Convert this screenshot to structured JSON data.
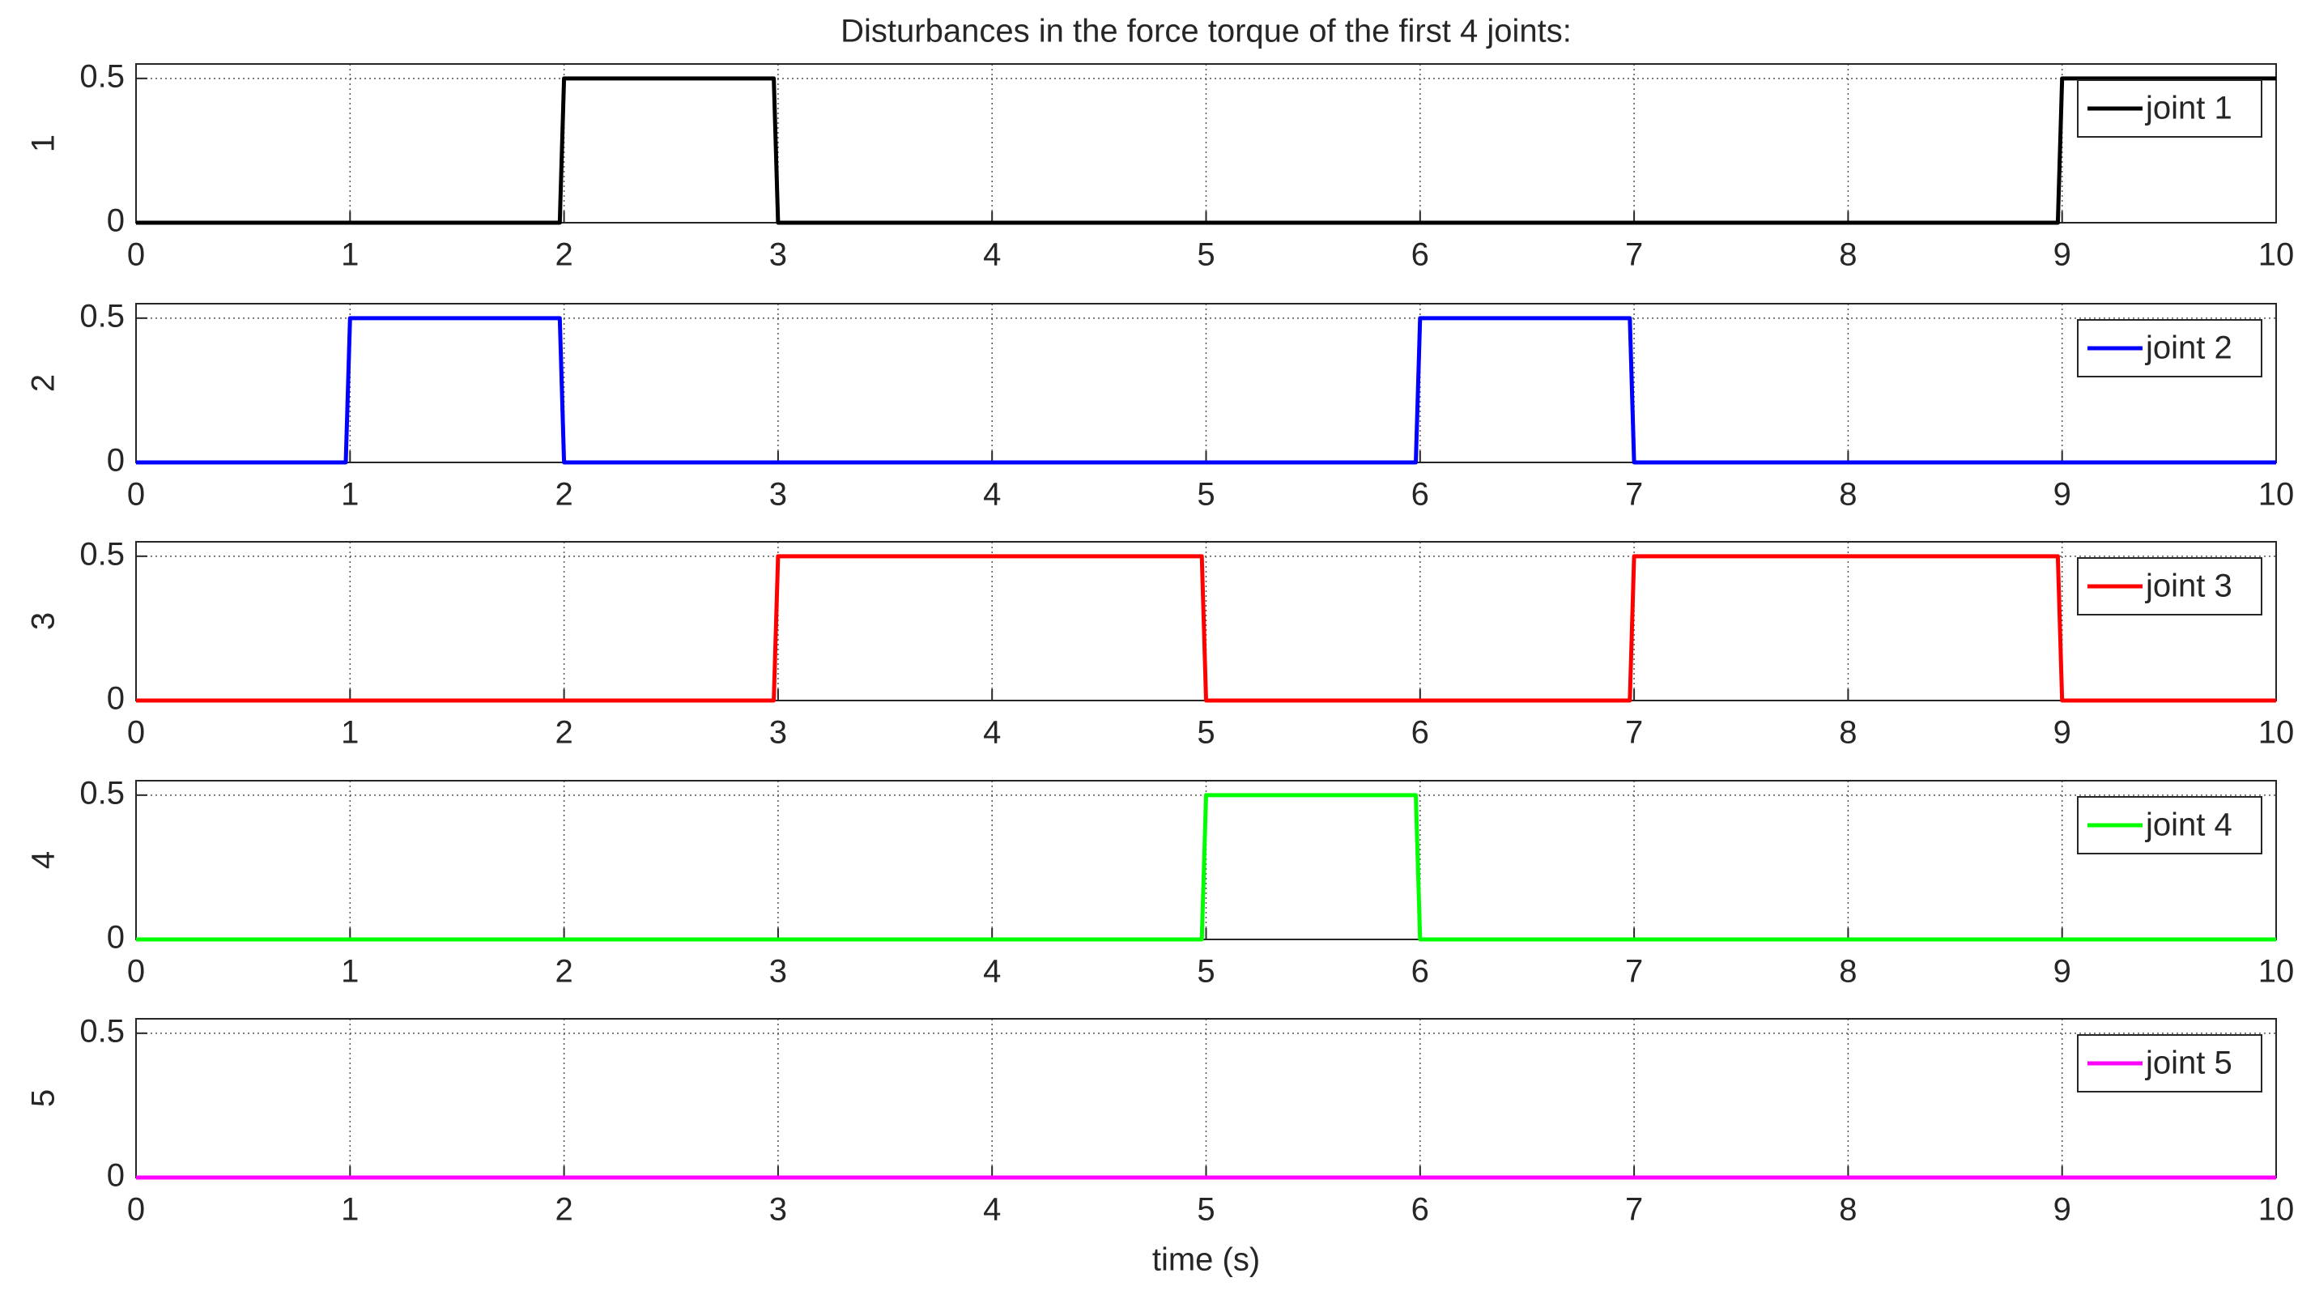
{
  "chart_data": [
    {
      "type": "line",
      "title": "Disturbances in the force torque of the first 4 joints:",
      "ylabel": "1",
      "xlim": [
        0,
        10
      ],
      "ylim": [
        0,
        0.55
      ],
      "xticks": [
        0,
        1,
        2,
        3,
        4,
        5,
        6,
        7,
        8,
        9,
        10
      ],
      "yticks": [
        0,
        0.5
      ],
      "grid": true,
      "legend": "northeast",
      "series": [
        {
          "name": "joint 1",
          "color": "#000000",
          "x": [
            0,
            1.98,
            2,
            2.98,
            3,
            8.98,
            9,
            10
          ],
          "values": [
            0,
            0,
            0.5,
            0.5,
            0,
            0,
            0.5,
            0.5
          ]
        }
      ]
    },
    {
      "type": "line",
      "ylabel": "2",
      "xlim": [
        0,
        10
      ],
      "ylim": [
        0,
        0.55
      ],
      "xticks": [
        0,
        1,
        2,
        3,
        4,
        5,
        6,
        7,
        8,
        9,
        10
      ],
      "yticks": [
        0,
        0.5
      ],
      "grid": true,
      "legend": "northeast",
      "series": [
        {
          "name": "joint 2",
          "color": "#0000ff",
          "x": [
            0,
            0.98,
            1,
            1.98,
            2,
            5.98,
            6,
            6.98,
            7,
            10
          ],
          "values": [
            0,
            0,
            0.5,
            0.5,
            0,
            0,
            0.5,
            0.5,
            0,
            0
          ]
        }
      ]
    },
    {
      "type": "line",
      "ylabel": "3",
      "xlim": [
        0,
        10
      ],
      "ylim": [
        0,
        0.55
      ],
      "xticks": [
        0,
        1,
        2,
        3,
        4,
        5,
        6,
        7,
        8,
        9,
        10
      ],
      "yticks": [
        0,
        0.5
      ],
      "grid": true,
      "legend": "northeast",
      "series": [
        {
          "name": "joint 3",
          "color": "#ff0000",
          "x": [
            0,
            2.98,
            3,
            4.98,
            5,
            6.98,
            7,
            8.98,
            9,
            10
          ],
          "values": [
            0,
            0,
            0.5,
            0.5,
            0,
            0,
            0.5,
            0.5,
            0,
            0
          ]
        }
      ]
    },
    {
      "type": "line",
      "ylabel": "4",
      "xlim": [
        0,
        10
      ],
      "ylim": [
        0,
        0.55
      ],
      "xticks": [
        0,
        1,
        2,
        3,
        4,
        5,
        6,
        7,
        8,
        9,
        10
      ],
      "yticks": [
        0,
        0.5
      ],
      "grid": true,
      "legend": "northeast",
      "series": [
        {
          "name": "joint 4",
          "color": "#00ff00",
          "x": [
            0,
            4.98,
            5,
            5.98,
            6,
            10
          ],
          "values": [
            0,
            0,
            0.5,
            0.5,
            0,
            0
          ]
        }
      ]
    },
    {
      "type": "line",
      "ylabel": "5",
      "xlabel": "time (s)",
      "xlim": [
        0,
        10
      ],
      "ylim": [
        0,
        0.55
      ],
      "xticks": [
        0,
        1,
        2,
        3,
        4,
        5,
        6,
        7,
        8,
        9,
        10
      ],
      "yticks": [
        0,
        0.5
      ],
      "grid": true,
      "legend": "northeast",
      "series": [
        {
          "name": "joint 5",
          "color": "#ff00ff",
          "x": [
            0,
            10
          ],
          "values": [
            0,
            0
          ]
        }
      ]
    }
  ]
}
